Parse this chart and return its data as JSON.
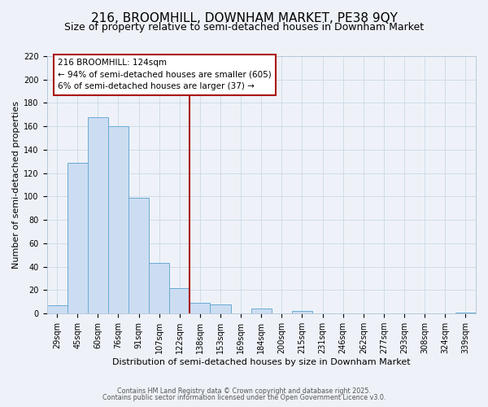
{
  "title": "216, BROOMHILL, DOWNHAM MARKET, PE38 9QY",
  "subtitle": "Size of property relative to semi-detached houses in Downham Market",
  "bar_labels": [
    "29sqm",
    "45sqm",
    "60sqm",
    "76sqm",
    "91sqm",
    "107sqm",
    "122sqm",
    "138sqm",
    "153sqm",
    "169sqm",
    "184sqm",
    "200sqm",
    "215sqm",
    "231sqm",
    "246sqm",
    "262sqm",
    "277sqm",
    "293sqm",
    "308sqm",
    "324sqm",
    "339sqm"
  ],
  "bar_values": [
    7,
    129,
    168,
    160,
    99,
    43,
    22,
    9,
    8,
    0,
    4,
    0,
    2,
    0,
    0,
    0,
    0,
    0,
    0,
    0,
    1
  ],
  "bar_color": "#ccddf2",
  "bar_edge_color": "#6aaad4",
  "grid_color": "#d0dce8",
  "background_color": "#eef2f8",
  "marker_bar_index": 6,
  "marker_line_color": "#aa1111",
  "annotation_title": "216 BROOMHILL: 124sqm",
  "annotation_line1": "← 94% of semi-detached houses are smaller (605)",
  "annotation_line2": "6% of semi-detached houses are larger (37) →",
  "annotation_box_facecolor": "#ffffff",
  "annotation_border_color": "#aa1111",
  "xlabel": "Distribution of semi-detached houses by size in Downham Market",
  "ylabel": "Number of semi-detached properties",
  "ylim_max": 220,
  "yticks": [
    0,
    20,
    40,
    60,
    80,
    100,
    120,
    140,
    160,
    180,
    200,
    220
  ],
  "footer1": "Contains HM Land Registry data © Crown copyright and database right 2025.",
  "footer2": "Contains public sector information licensed under the Open Government Licence v3.0.",
  "title_fontsize": 11,
  "subtitle_fontsize": 9,
  "axis_label_fontsize": 8,
  "tick_fontsize": 7,
  "annot_fontsize": 7.5,
  "footer_fontsize": 5.8
}
